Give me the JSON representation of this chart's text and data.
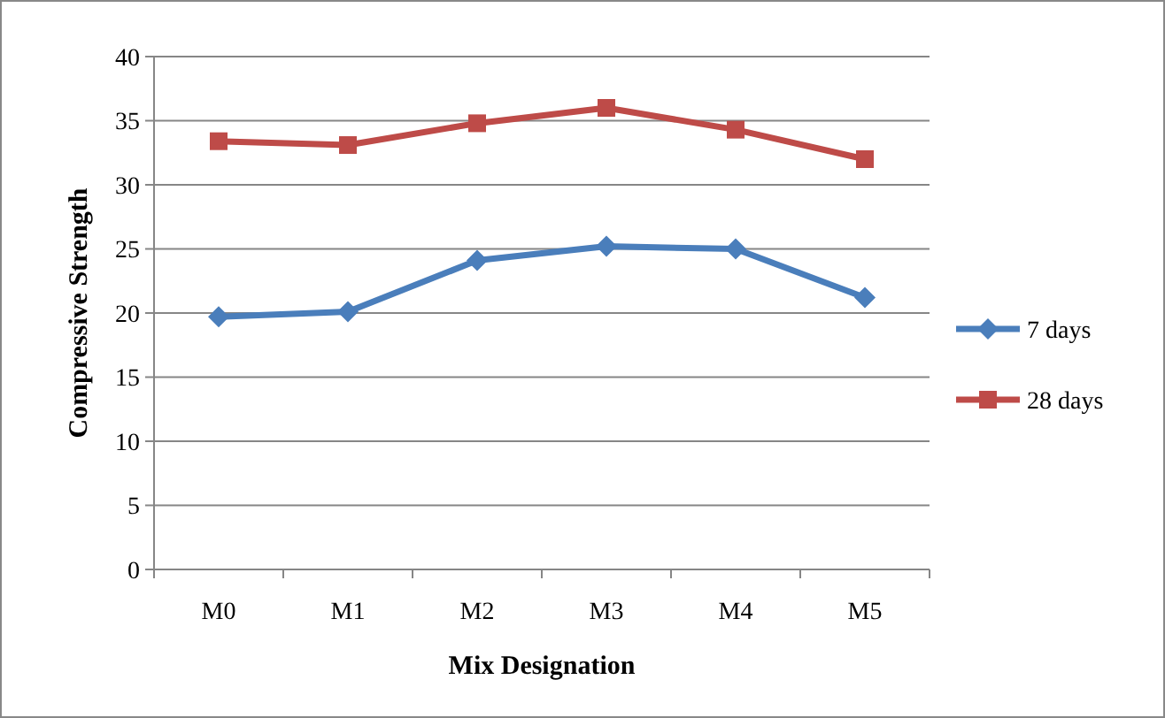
{
  "chart_data": {
    "type": "line",
    "xlabel": "Mix Designation",
    "ylabel": "Compressive Strength",
    "categories": [
      "M0",
      "M1",
      "M2",
      "M3",
      "M4",
      "M5"
    ],
    "series": [
      {
        "name": "7 days",
        "color": "#4a7ebb",
        "marker": "diamond",
        "values": [
          19.7,
          20.1,
          24.1,
          25.2,
          25.0,
          21.2
        ]
      },
      {
        "name": "28 days",
        "color": "#be4b48",
        "marker": "square",
        "values": [
          33.4,
          33.1,
          34.8,
          36.0,
          34.3,
          32.0
        ]
      }
    ],
    "ylim": [
      0,
      40
    ],
    "yticks": [
      0,
      5,
      10,
      15,
      20,
      25,
      30,
      35,
      40
    ],
    "grid": "y",
    "legend": "right"
  }
}
